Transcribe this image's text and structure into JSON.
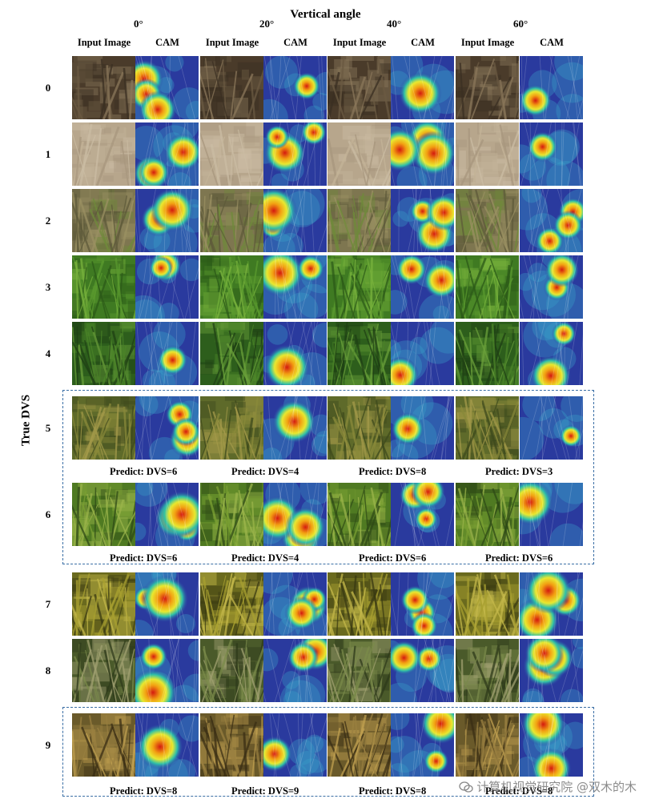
{
  "figure": {
    "title": "Vertical angle",
    "y_axis_label": "True DVS",
    "angles": [
      "0°",
      "20°",
      "40°",
      "60°"
    ],
    "column_headers": [
      "Input Image",
      "CAM",
      "Input Image",
      "CAM",
      "Input Image",
      "CAM",
      "Input Image",
      "CAM"
    ],
    "rows": [
      {
        "label": "0",
        "predictions": []
      },
      {
        "label": "1",
        "predictions": []
      },
      {
        "label": "2",
        "predictions": []
      },
      {
        "label": "3",
        "predictions": []
      },
      {
        "label": "4",
        "predictions": []
      },
      {
        "label": "5",
        "predictions": [
          "Predict: DVS=6",
          "Predict: DVS=4",
          "Predict: DVS=8",
          "Predict: DVS=3"
        ]
      },
      {
        "label": "6",
        "predictions": [
          "Predict: DVS=6",
          "Predict: DVS=4",
          "Predict: DVS=6",
          "Predict: DVS=6"
        ]
      },
      {
        "label": "7",
        "predictions": []
      },
      {
        "label": "8",
        "predictions": []
      },
      {
        "label": "9",
        "predictions": [
          "Predict: DVS=8",
          "Predict: DVS=9",
          "Predict: DVS=8",
          "Predict: DVS=8"
        ]
      }
    ],
    "highlight_color": "#3a6ea5",
    "watermark": "计算机视觉研究院 @双木的木"
  }
}
